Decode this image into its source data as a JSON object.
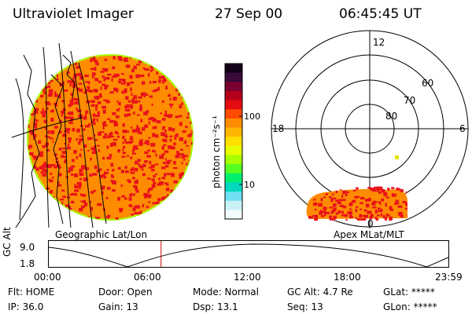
{
  "header": {
    "title": "Ultraviolet Imager",
    "date": "27 Sep 00",
    "time": "06:45:45 UT"
  },
  "colorbar": {
    "unit": "photon cm⁻²s⁻¹",
    "ticks": [
      "100",
      "10"
    ],
    "colors_top_to_bottom": [
      "#120016",
      "#3a0a3a",
      "#7a0030",
      "#b5001c",
      "#e30d12",
      "#ff4a00",
      "#ff8c00",
      "#ffb600",
      "#ffe000",
      "#e6ff00",
      "#a8ff00",
      "#55ff20",
      "#00f070",
      "#00d8c0",
      "#6ee0f0",
      "#c8f2f8",
      "#f2fbfd"
    ]
  },
  "left_panel": {
    "label": "Geographic Lat/Lon",
    "disk_colors": {
      "base": "#ff8c00",
      "spots": "#e8121a",
      "limb": "#a8ff00"
    }
  },
  "right_panel": {
    "label": "Apex MLat/MLT",
    "mlt_labels": {
      "top": "12",
      "left": "18",
      "right": "6",
      "bottom": "0"
    },
    "mlat_labels": [
      "60",
      "70",
      "80"
    ]
  },
  "timeline": {
    "ylabel": "GC Alt",
    "y_ticks": [
      "9.0",
      "1.8"
    ],
    "x_ticks": [
      "00:00",
      "06:00",
      "12:00",
      "18:00",
      "23:59"
    ],
    "current_time_fraction": 0.281,
    "marker_color": "#d00000"
  },
  "info": {
    "flt": "Flt: HOME",
    "ip": "IP: 36.0",
    "door": "Door: Open",
    "gain": "Gain: 13",
    "mode": "Mode: Normal",
    "dsp": "Dsp:   13.1",
    "gc_alt": "GC Alt: 4.7 Re",
    "seq": "Seq: 13",
    "glat": "GLat: *****",
    "glon": "GLon: *****"
  }
}
